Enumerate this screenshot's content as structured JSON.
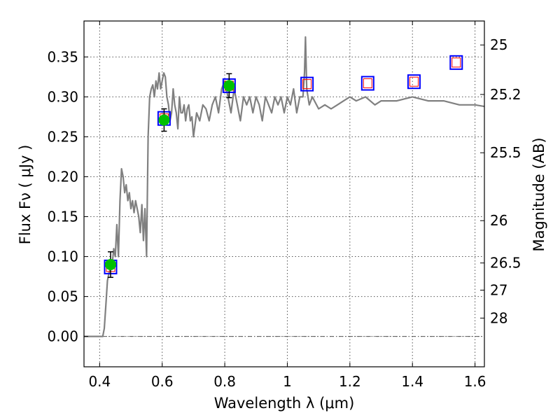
{
  "chart_data": {
    "type": "line",
    "xlabel": "Wavelength  λ (μm)",
    "ylabel": "Flux  Fν  ( μJy )",
    "y2label": "Magnitude (AB)",
    "xlim": [
      0.35,
      1.63
    ],
    "ylim": [
      -0.038,
      0.395
    ],
    "grid": true,
    "xticks": [
      {
        "value": 0.4,
        "label": "0.4"
      },
      {
        "value": 0.6,
        "label": "0.6"
      },
      {
        "value": 0.8,
        "label": "0.8"
      },
      {
        "value": 1.0,
        "label": "1"
      },
      {
        "value": 1.2,
        "label": "1.2"
      },
      {
        "value": 1.4,
        "label": "1.4"
      },
      {
        "value": 1.6,
        "label": "1.6"
      }
    ],
    "yticks": [
      {
        "value": 0.0,
        "label": "0.00"
      },
      {
        "value": 0.05,
        "label": "0.05"
      },
      {
        "value": 0.1,
        "label": "0.10"
      },
      {
        "value": 0.15,
        "label": "0.15"
      },
      {
        "value": 0.2,
        "label": "0.20"
      },
      {
        "value": 0.25,
        "label": "0.25"
      },
      {
        "value": 0.3,
        "label": "0.30"
      },
      {
        "value": 0.35,
        "label": "0.35"
      }
    ],
    "y2ticks": [
      {
        "flux": 0.365,
        "label": "25"
      },
      {
        "flux": 0.303,
        "label": "25.2"
      },
      {
        "flux": 0.23,
        "label": "25.5"
      },
      {
        "flux": 0.145,
        "label": "26"
      },
      {
        "flux": 0.092,
        "label": "26.5"
      },
      {
        "flux": 0.058,
        "label": "27"
      },
      {
        "flux": 0.023,
        "label": "28"
      }
    ],
    "colors": {
      "model": "#808080",
      "photometry_fill": "#00c000",
      "box_outer": "#0000ff",
      "box_inner": "#ff0000",
      "grid": "#555555",
      "zero_line": "#555555"
    },
    "series": [
      {
        "kind": "model-spectrum",
        "x": [
          0.35,
          0.41,
          0.415,
          0.42,
          0.425,
          0.43,
          0.435,
          0.44,
          0.445,
          0.45,
          0.455,
          0.46,
          0.465,
          0.47,
          0.475,
          0.48,
          0.485,
          0.49,
          0.495,
          0.5,
          0.505,
          0.51,
          0.515,
          0.52,
          0.525,
          0.53,
          0.535,
          0.54,
          0.545,
          0.55,
          0.555,
          0.56,
          0.565,
          0.57,
          0.575,
          0.58,
          0.585,
          0.59,
          0.595,
          0.6,
          0.605,
          0.61,
          0.615,
          0.62,
          0.625,
          0.63,
          0.635,
          0.64,
          0.645,
          0.65,
          0.655,
          0.66,
          0.665,
          0.67,
          0.675,
          0.68,
          0.685,
          0.69,
          0.695,
          0.7,
          0.71,
          0.72,
          0.73,
          0.74,
          0.75,
          0.76,
          0.77,
          0.78,
          0.79,
          0.8,
          0.81,
          0.82,
          0.83,
          0.84,
          0.85,
          0.86,
          0.87,
          0.88,
          0.89,
          0.9,
          0.91,
          0.92,
          0.93,
          0.94,
          0.95,
          0.96,
          0.97,
          0.98,
          0.99,
          1.0,
          1.01,
          1.02,
          1.03,
          1.04,
          1.05,
          1.055,
          1.058,
          1.062,
          1.07,
          1.08,
          1.1,
          1.12,
          1.14,
          1.16,
          1.18,
          1.2,
          1.22,
          1.25,
          1.28,
          1.3,
          1.35,
          1.4,
          1.45,
          1.5,
          1.55,
          1.6,
          1.63
        ],
        "y": [
          0.0,
          0.0,
          0.01,
          0.04,
          0.07,
          0.08,
          0.085,
          0.09,
          0.11,
          0.1,
          0.14,
          0.1,
          0.17,
          0.21,
          0.2,
          0.18,
          0.19,
          0.17,
          0.18,
          0.16,
          0.17,
          0.155,
          0.17,
          0.16,
          0.15,
          0.13,
          0.165,
          0.12,
          0.16,
          0.1,
          0.25,
          0.3,
          0.31,
          0.315,
          0.3,
          0.32,
          0.31,
          0.33,
          0.31,
          0.32,
          0.33,
          0.325,
          0.3,
          0.29,
          0.27,
          0.28,
          0.31,
          0.29,
          0.28,
          0.26,
          0.3,
          0.28,
          0.28,
          0.29,
          0.27,
          0.285,
          0.29,
          0.27,
          0.275,
          0.25,
          0.28,
          0.27,
          0.29,
          0.285,
          0.27,
          0.29,
          0.3,
          0.28,
          0.31,
          0.32,
          0.3,
          0.28,
          0.31,
          0.29,
          0.27,
          0.3,
          0.29,
          0.3,
          0.28,
          0.3,
          0.29,
          0.27,
          0.3,
          0.29,
          0.28,
          0.3,
          0.29,
          0.3,
          0.28,
          0.3,
          0.29,
          0.31,
          0.28,
          0.3,
          0.3,
          0.33,
          0.375,
          0.31,
          0.29,
          0.3,
          0.285,
          0.29,
          0.285,
          0.29,
          0.295,
          0.3,
          0.295,
          0.3,
          0.29,
          0.295,
          0.295,
          0.3,
          0.295,
          0.295,
          0.29,
          0.29,
          0.288
        ]
      },
      {
        "kind": "photometry-points",
        "points": [
          {
            "x": 0.435,
            "y": 0.09,
            "err": 0.016
          },
          {
            "x": 0.606,
            "y": 0.271,
            "err": 0.014
          },
          {
            "x": 0.814,
            "y": 0.314,
            "err": 0.015
          }
        ]
      },
      {
        "kind": "model-photometry-boxes",
        "points": [
          {
            "x": 0.435,
            "y": 0.087
          },
          {
            "x": 0.606,
            "y": 0.273
          },
          {
            "x": 0.814,
            "y": 0.314
          },
          {
            "x": 1.063,
            "y": 0.316
          },
          {
            "x": 1.257,
            "y": 0.317
          },
          {
            "x": 1.405,
            "y": 0.319
          },
          {
            "x": 1.54,
            "y": 0.343
          }
        ]
      }
    ]
  }
}
